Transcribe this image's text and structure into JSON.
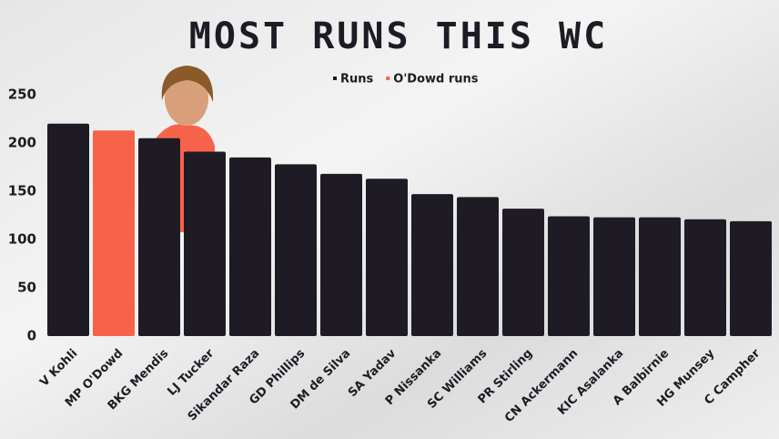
{
  "chart_data": {
    "type": "bar",
    "title": "MOST RUNS THIS WC",
    "categories": [
      "V Kohli",
      "MP O'Dowd",
      "BKG Mendis",
      "LJ Tucker",
      "Sikandar Raza",
      "GD Phillips",
      "DM de Silva",
      "SA Yadav",
      "P Nissanka",
      "SC Williams",
      "PR Stirling",
      "CN Ackermann",
      "KIC Asalanka",
      "A Balbirnie",
      "HG Munsey",
      "C Campher"
    ],
    "series": [
      {
        "name": "Runs",
        "color": "#1f1b24",
        "values": [
          220,
          null,
          205,
          191,
          185,
          178,
          168,
          163,
          147,
          144,
          132,
          124,
          123,
          123,
          121,
          119
        ]
      },
      {
        "name": "O'Dowd runs",
        "color": "#f7634a",
        "values": [
          null,
          213,
          null,
          null,
          null,
          null,
          null,
          null,
          null,
          null,
          null,
          null,
          null,
          null,
          null,
          null
        ]
      }
    ],
    "ylim": [
      0,
      250
    ],
    "yticks": [
      0,
      50,
      100,
      150,
      200,
      250
    ],
    "grid": false,
    "legend": "top"
  }
}
